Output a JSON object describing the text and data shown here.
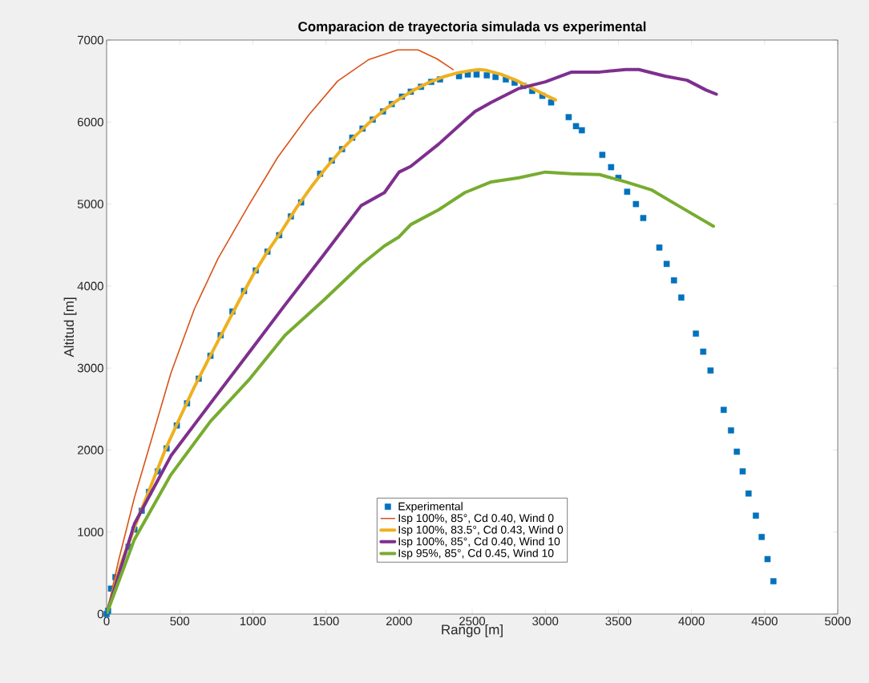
{
  "chart_data": {
    "type": "line",
    "title": "Comparacion de trayectoria simulada vs experimental",
    "xlabel": "Rango [m]",
    "ylabel": "Altitud [m]",
    "xlim": [
      0,
      5000
    ],
    "ylim": [
      0,
      7000
    ],
    "xticks": [
      0,
      500,
      1000,
      1500,
      2000,
      2500,
      3000,
      3500,
      4000,
      4500,
      5000
    ],
    "yticks": [
      0,
      1000,
      2000,
      3000,
      4000,
      5000,
      6000,
      7000
    ],
    "legend": "bottom",
    "series": [
      {
        "name": "Experimental",
        "type": "scatter",
        "marker": "square",
        "color": "#0072bd",
        "x": [
          0,
          10,
          30,
          60,
          150,
          190,
          240,
          290,
          350,
          410,
          480,
          550,
          630,
          710,
          780,
          860,
          940,
          1020,
          1100,
          1180,
          1260,
          1330,
          1460,
          1540,
          1610,
          1680,
          1750,
          1820,
          1890,
          1950,
          2020,
          2080,
          2150,
          2220,
          2280,
          2410,
          2470,
          2530,
          2600,
          2660,
          2730,
          2790,
          2850,
          2910,
          2980,
          3040,
          3160,
          3210,
          3250,
          3390,
          3450,
          3500,
          3560,
          3620,
          3670,
          3780,
          3830,
          3880,
          3930,
          4030,
          4080,
          4130,
          4220,
          4270,
          4310,
          4350,
          4390,
          4440,
          4480,
          4520,
          4560
        ],
        "values": [
          0,
          40,
          310,
          450,
          820,
          1030,
          1260,
          1490,
          1740,
          2020,
          2300,
          2570,
          2870,
          3150,
          3400,
          3690,
          3940,
          4190,
          4420,
          4620,
          4850,
          5020,
          5370,
          5530,
          5670,
          5810,
          5920,
          6030,
          6130,
          6220,
          6310,
          6370,
          6430,
          6490,
          6520,
          6560,
          6580,
          6580,
          6570,
          6550,
          6520,
          6480,
          6440,
          6380,
          6320,
          6240,
          6060,
          5950,
          5900,
          5600,
          5450,
          5320,
          5150,
          5000,
          4830,
          4470,
          4270,
          4070,
          3860,
          3420,
          3200,
          2970,
          2490,
          2240,
          1980,
          1740,
          1470,
          1200,
          940,
          670,
          400
        ]
      },
      {
        "name": "Isp 100%, 85°, Cd 0.40, Wind 0",
        "color": "#d95319",
        "x": [
          0,
          80,
          190,
          320,
          440,
          600,
          760,
          970,
          1170,
          1380,
          1580,
          1790,
          1990,
          2130,
          2260,
          2370
        ],
        "values": [
          0,
          640,
          1420,
          2210,
          2940,
          3720,
          4330,
          4980,
          5570,
          6080,
          6500,
          6760,
          6880,
          6880,
          6770,
          6640
        ]
      },
      {
        "name": "Isp 100%, 83.5°, Cd 0.43, Wind 0",
        "color": "#edb120",
        "x": [
          0,
          100,
          200,
          300,
          400,
          500,
          600,
          700,
          800,
          900,
          1000,
          1100,
          1200,
          1300,
          1400,
          1500,
          1600,
          1700,
          1800,
          1900,
          2000,
          2100,
          2200,
          2300,
          2400,
          2500,
          2550,
          2600,
          2700,
          2800,
          2900,
          3000,
          3070
        ],
        "values": [
          0,
          620,
          1100,
          1550,
          2000,
          2390,
          2770,
          3120,
          3460,
          3800,
          4130,
          4420,
          4680,
          4960,
          5210,
          5440,
          5650,
          5830,
          6000,
          6150,
          6280,
          6390,
          6480,
          6550,
          6600,
          6630,
          6640,
          6630,
          6580,
          6510,
          6420,
          6330,
          6270
        ]
      },
      {
        "name": "Isp 100%, 85°, Cd 0.40, Wind 10",
        "color": "#7e2f8e",
        "x": [
          0,
          190,
          440,
          710,
          970,
          1220,
          1480,
          1740,
          1900,
          2000,
          2080,
          2270,
          2450,
          2520,
          2630,
          2820,
          3000,
          3180,
          3370,
          3550,
          3640,
          3820,
          3970,
          4100,
          4170
        ],
        "values": [
          0,
          1100,
          1930,
          2570,
          3180,
          3770,
          4370,
          4980,
          5140,
          5390,
          5460,
          5730,
          6020,
          6130,
          6240,
          6410,
          6490,
          6610,
          6610,
          6640,
          6640,
          6560,
          6510,
          6390,
          6340
        ]
      },
      {
        "name": "Isp 95%, 85°, Cd 0.45, Wind 10",
        "color": "#77ac30",
        "x": [
          0,
          190,
          440,
          710,
          970,
          1220,
          1480,
          1740,
          1900,
          2000,
          2080,
          2270,
          2450,
          2630,
          2820,
          3000,
          3180,
          3370,
          3550,
          3730,
          3910,
          4150
        ],
        "values": [
          0,
          910,
          1700,
          2350,
          2850,
          3400,
          3820,
          4260,
          4490,
          4600,
          4750,
          4930,
          5140,
          5270,
          5320,
          5390,
          5370,
          5360,
          5270,
          5170,
          4980,
          4730
        ]
      }
    ]
  }
}
